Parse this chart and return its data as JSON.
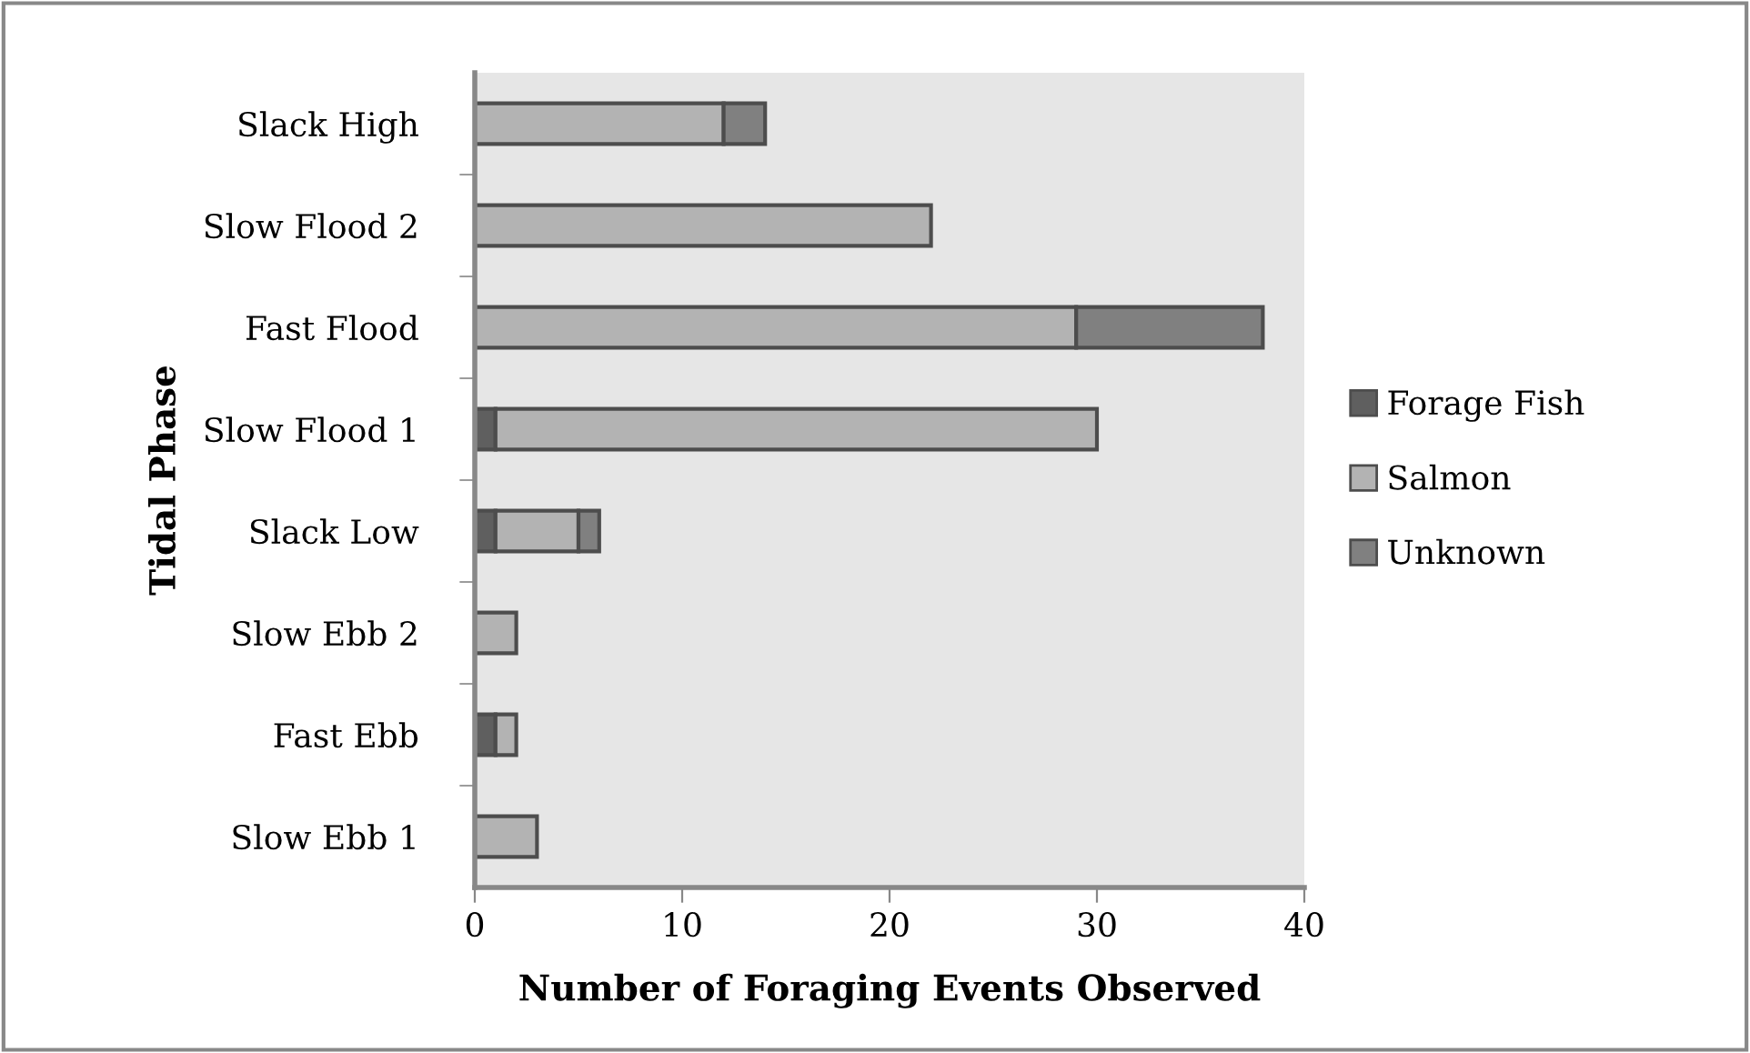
{
  "chart_data": {
    "type": "bar",
    "orientation": "horizontal",
    "stacked": true,
    "xlabel": "Number of Foraging Events Observed",
    "ylabel": "Tidal Phase",
    "categories": [
      "Slack High",
      "Slow Flood 2",
      "Fast Flood",
      "Slow Flood 1",
      "Slack Low",
      "Slow Ebb 2",
      "Fast Ebb",
      "Slow Ebb 1"
    ],
    "series": [
      {
        "name": "Forage Fish",
        "color": "#5f5f5f",
        "values": [
          0,
          0,
          0,
          1,
          1,
          0,
          1,
          0
        ]
      },
      {
        "name": "Salmon",
        "color": "#b3b3b3",
        "values": [
          12,
          22,
          29,
          29,
          4,
          2,
          1,
          3
        ]
      },
      {
        "name": "Unknown",
        "color": "#808080",
        "values": [
          2,
          0,
          9,
          0,
          1,
          0,
          0,
          0
        ]
      }
    ],
    "xlim": [
      0,
      40
    ],
    "xticks": [
      0,
      10,
      20,
      30,
      40
    ],
    "grid": false,
    "legend": "right"
  }
}
